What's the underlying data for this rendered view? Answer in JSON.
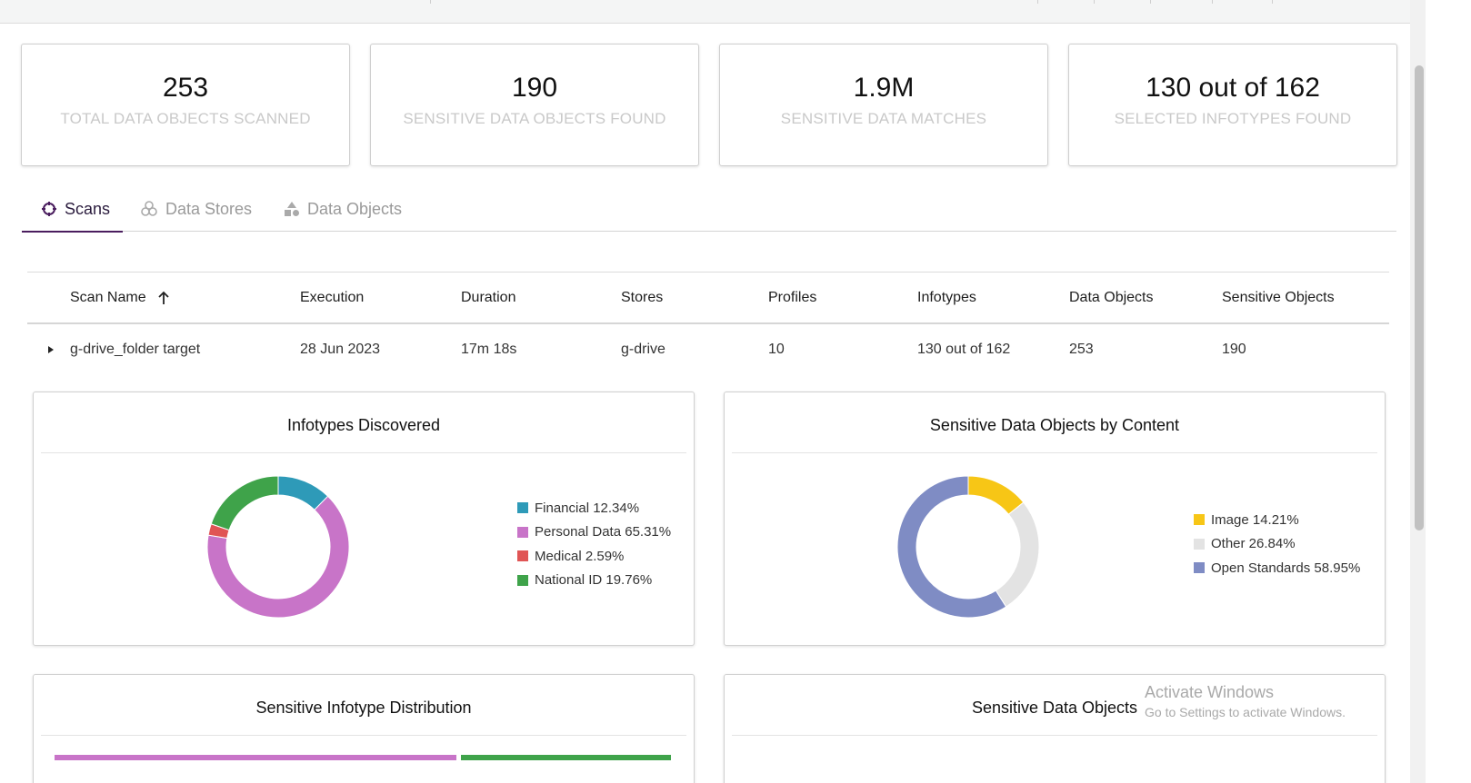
{
  "stats": [
    {
      "value": "253",
      "label": "TOTAL DATA OBJECTS SCANNED"
    },
    {
      "value": "190",
      "label": "SENSITIVE DATA OBJECTS FOUND"
    },
    {
      "value": "1.9M",
      "label": "SENSITIVE DATA MATCHES"
    },
    {
      "value": "130 out of 162",
      "label": "SELECTED INFOTYPES FOUND"
    }
  ],
  "tabs": [
    {
      "label": "Scans",
      "icon": "crosshair-icon",
      "active": true
    },
    {
      "label": "Data Stores",
      "icon": "database-icon",
      "active": false
    },
    {
      "label": "Data Objects",
      "icon": "shapes-icon",
      "active": false
    }
  ],
  "table": {
    "columns": [
      "Scan Name",
      "Execution",
      "Duration",
      "Stores",
      "Profiles",
      "Infotypes",
      "Data Objects",
      "Sensitive Objects"
    ],
    "sort_icon": "arrow-up-icon",
    "rows": [
      [
        "g-drive_folder target",
        "28 Jun 2023",
        "17m 18s",
        "g-drive",
        "10",
        "130 out of 162",
        "253",
        "190"
      ]
    ]
  },
  "panels": {
    "infotypes": {
      "title": "Infotypes Discovered"
    },
    "content": {
      "title": "Sensitive Data Objects by Content"
    },
    "distribution": {
      "title": "Sensitive Infotype Distribution"
    },
    "objects": {
      "title": "Sensitive Data Objects"
    }
  },
  "chart_data": [
    {
      "type": "pie",
      "title": "Infotypes Discovered",
      "categories": [
        "Financial",
        "Personal Data",
        "Medical",
        "National ID"
      ],
      "values": [
        12.34,
        65.31,
        2.59,
        19.76
      ],
      "legend_labels": [
        "Financial 12.34%",
        "Personal Data 65.31%",
        "Medical 2.59%",
        "National ID 19.76%"
      ],
      "colors": [
        "#2e9ab8",
        "#c874c8",
        "#e05555",
        "#3fa34a"
      ],
      "legend": "right"
    },
    {
      "type": "pie",
      "title": "Sensitive Data Objects by Content",
      "categories": [
        "Image",
        "Other",
        "Open Standards"
      ],
      "values": [
        14.21,
        26.84,
        58.95
      ],
      "legend_labels": [
        "Image 14.21%",
        "Other 26.84%",
        "Open Standards 58.95%"
      ],
      "colors": [
        "#f7c616",
        "#e3e3e3",
        "#7f8cc4"
      ],
      "legend": "right"
    }
  ],
  "distribution_bar_colors": [
    "#c874c8",
    "#3fa34a"
  ],
  "watermark": {
    "title": "Activate Windows",
    "subtitle": "Go to Settings to activate Windows."
  },
  "colors": {
    "accent": "#4a1d5e",
    "muted_text": "#c9c9c9"
  }
}
